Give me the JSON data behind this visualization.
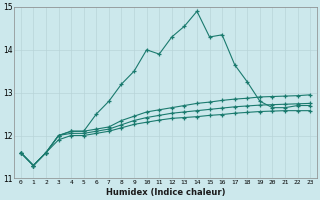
{
  "xlabel": "Humidex (Indice chaleur)",
  "ylabel": "",
  "bg_color": "#cce8ec",
  "grid_color": "#b8d4d8",
  "line_color": "#1a7a6e",
  "x_values": [
    0,
    1,
    2,
    3,
    4,
    5,
    6,
    7,
    8,
    9,
    10,
    11,
    12,
    13,
    14,
    15,
    16,
    17,
    18,
    19,
    20,
    21,
    22,
    23
  ],
  "line1": [
    11.6,
    11.3,
    11.6,
    12.0,
    12.1,
    12.1,
    12.5,
    12.8,
    13.2,
    13.5,
    14.0,
    13.9,
    14.3,
    14.55,
    14.9,
    14.3,
    14.35,
    13.65,
    13.25,
    12.8,
    12.65,
    12.65,
    12.7,
    12.7
  ],
  "line2": [
    11.6,
    11.3,
    11.6,
    12.0,
    12.1,
    12.1,
    12.15,
    12.2,
    12.35,
    12.45,
    12.55,
    12.6,
    12.65,
    12.7,
    12.75,
    12.78,
    12.82,
    12.85,
    12.87,
    12.9,
    12.91,
    12.92,
    12.93,
    12.95
  ],
  "line3": [
    11.6,
    11.3,
    11.6,
    12.0,
    12.05,
    12.05,
    12.1,
    12.15,
    12.25,
    12.35,
    12.42,
    12.47,
    12.52,
    12.55,
    12.58,
    12.61,
    12.64,
    12.67,
    12.69,
    12.71,
    12.72,
    12.73,
    12.74,
    12.75
  ],
  "line4": [
    11.6,
    11.3,
    11.6,
    11.9,
    12.0,
    12.0,
    12.05,
    12.1,
    12.18,
    12.26,
    12.31,
    12.36,
    12.4,
    12.42,
    12.44,
    12.47,
    12.49,
    12.52,
    12.54,
    12.56,
    12.57,
    12.58,
    12.58,
    12.58
  ],
  "ylim": [
    11.0,
    15.0
  ],
  "yticks": [
    11,
    12,
    13,
    14,
    15
  ],
  "xticks": [
    0,
    1,
    2,
    3,
    4,
    5,
    6,
    7,
    8,
    9,
    10,
    11,
    12,
    13,
    14,
    15,
    16,
    17,
    18,
    19,
    20,
    21,
    22,
    23
  ]
}
